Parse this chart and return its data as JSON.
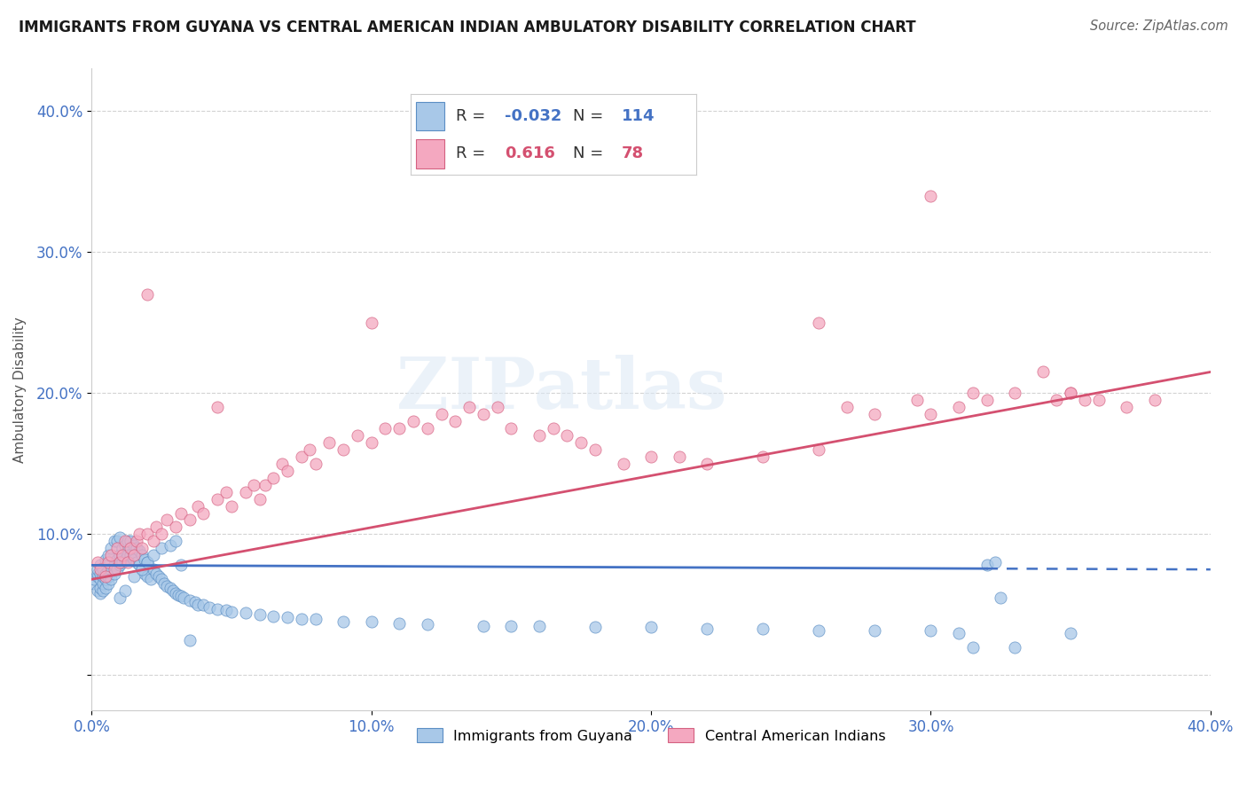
{
  "title": "IMMIGRANTS FROM GUYANA VS CENTRAL AMERICAN INDIAN AMBULATORY DISABILITY CORRELATION CHART",
  "source": "Source: ZipAtlas.com",
  "ylabel": "Ambulatory Disability",
  "xlim": [
    0.0,
    0.4
  ],
  "ylim": [
    -0.025,
    0.43
  ],
  "yticks": [
    0.0,
    0.1,
    0.2,
    0.3,
    0.4
  ],
  "xticks": [
    0.0,
    0.1,
    0.2,
    0.3,
    0.4
  ],
  "ytick_labels": [
    "",
    "10.0%",
    "20.0%",
    "30.0%",
    "40.0%"
  ],
  "xtick_labels": [
    "0.0%",
    "10.0%",
    "20.0%",
    "30.0%",
    "40.0%"
  ],
  "blue_R": "-0.032",
  "blue_N": "114",
  "pink_R": "0.616",
  "pink_N": "78",
  "blue_color": "#a8c8e8",
  "pink_color": "#f4a8c0",
  "blue_edge_color": "#5b8ec4",
  "pink_edge_color": "#d46080",
  "blue_line_color": "#4472c4",
  "pink_line_color": "#d45070",
  "watermark": "ZIPatlas",
  "legend_label_blue": "Immigrants from Guyana",
  "legend_label_pink": "Central American Indians",
  "title_fontsize": 12,
  "axis_tick_color": "#4472c4",
  "blue_line_start_y": 0.078,
  "blue_line_end_y": 0.075,
  "blue_line_solid_end_x": 0.32,
  "pink_line_start_y": 0.068,
  "pink_line_end_y": 0.215,
  "blue_scatter_x": [
    0.001,
    0.001,
    0.002,
    0.002,
    0.002,
    0.002,
    0.003,
    0.003,
    0.003,
    0.003,
    0.003,
    0.004,
    0.004,
    0.004,
    0.004,
    0.005,
    0.005,
    0.005,
    0.005,
    0.006,
    0.006,
    0.006,
    0.006,
    0.007,
    0.007,
    0.007,
    0.008,
    0.008,
    0.008,
    0.009,
    0.009,
    0.009,
    0.01,
    0.01,
    0.01,
    0.011,
    0.011,
    0.012,
    0.012,
    0.013,
    0.013,
    0.014,
    0.014,
    0.015,
    0.015,
    0.016,
    0.016,
    0.017,
    0.017,
    0.018,
    0.018,
    0.019,
    0.019,
    0.02,
    0.02,
    0.021,
    0.022,
    0.023,
    0.024,
    0.025,
    0.026,
    0.027,
    0.028,
    0.029,
    0.03,
    0.031,
    0.032,
    0.033,
    0.035,
    0.037,
    0.038,
    0.04,
    0.042,
    0.045,
    0.048,
    0.05,
    0.055,
    0.06,
    0.065,
    0.07,
    0.075,
    0.08,
    0.09,
    0.1,
    0.11,
    0.12,
    0.14,
    0.15,
    0.16,
    0.18,
    0.2,
    0.22,
    0.24,
    0.26,
    0.28,
    0.3,
    0.31,
    0.315,
    0.32,
    0.323,
    0.325,
    0.33,
    0.35,
    0.01,
    0.012,
    0.015,
    0.018,
    0.02,
    0.022,
    0.025,
    0.028,
    0.03,
    0.032,
    0.035
  ],
  "blue_scatter_y": [
    0.065,
    0.068,
    0.06,
    0.07,
    0.072,
    0.075,
    0.058,
    0.062,
    0.068,
    0.072,
    0.078,
    0.06,
    0.065,
    0.07,
    0.075,
    0.062,
    0.068,
    0.072,
    0.082,
    0.065,
    0.07,
    0.075,
    0.085,
    0.068,
    0.075,
    0.09,
    0.072,
    0.078,
    0.095,
    0.075,
    0.082,
    0.095,
    0.078,
    0.085,
    0.098,
    0.08,
    0.09,
    0.082,
    0.092,
    0.085,
    0.095,
    0.085,
    0.095,
    0.082,
    0.092,
    0.08,
    0.09,
    0.078,
    0.088,
    0.075,
    0.085,
    0.072,
    0.082,
    0.07,
    0.08,
    0.068,
    0.075,
    0.072,
    0.07,
    0.068,
    0.065,
    0.063,
    0.062,
    0.06,
    0.058,
    0.057,
    0.056,
    0.055,
    0.053,
    0.052,
    0.05,
    0.05,
    0.048,
    0.047,
    0.046,
    0.045,
    0.044,
    0.043,
    0.042,
    0.041,
    0.04,
    0.04,
    0.038,
    0.038,
    0.037,
    0.036,
    0.035,
    0.035,
    0.035,
    0.034,
    0.034,
    0.033,
    0.033,
    0.032,
    0.032,
    0.032,
    0.03,
    0.02,
    0.078,
    0.08,
    0.055,
    0.02,
    0.03,
    0.055,
    0.06,
    0.07,
    0.075,
    0.08,
    0.085,
    0.09,
    0.092,
    0.095,
    0.078,
    0.025
  ],
  "pink_scatter_x": [
    0.002,
    0.003,
    0.005,
    0.006,
    0.007,
    0.008,
    0.009,
    0.01,
    0.011,
    0.012,
    0.013,
    0.014,
    0.015,
    0.016,
    0.017,
    0.018,
    0.02,
    0.022,
    0.023,
    0.025,
    0.027,
    0.03,
    0.032,
    0.035,
    0.038,
    0.04,
    0.045,
    0.048,
    0.05,
    0.055,
    0.058,
    0.06,
    0.062,
    0.065,
    0.068,
    0.07,
    0.075,
    0.078,
    0.08,
    0.085,
    0.09,
    0.095,
    0.1,
    0.105,
    0.11,
    0.115,
    0.12,
    0.125,
    0.13,
    0.135,
    0.14,
    0.145,
    0.15,
    0.16,
    0.165,
    0.17,
    0.175,
    0.18,
    0.19,
    0.2,
    0.21,
    0.22,
    0.24,
    0.26,
    0.27,
    0.28,
    0.295,
    0.3,
    0.31,
    0.315,
    0.32,
    0.33,
    0.34,
    0.345,
    0.35,
    0.355,
    0.36,
    0.37
  ],
  "pink_scatter_y": [
    0.08,
    0.075,
    0.07,
    0.08,
    0.085,
    0.075,
    0.09,
    0.08,
    0.085,
    0.095,
    0.08,
    0.09,
    0.085,
    0.095,
    0.1,
    0.09,
    0.1,
    0.095,
    0.105,
    0.1,
    0.11,
    0.105,
    0.115,
    0.11,
    0.12,
    0.115,
    0.125,
    0.13,
    0.12,
    0.13,
    0.135,
    0.125,
    0.135,
    0.14,
    0.15,
    0.145,
    0.155,
    0.16,
    0.15,
    0.165,
    0.16,
    0.17,
    0.165,
    0.175,
    0.175,
    0.18,
    0.175,
    0.185,
    0.18,
    0.19,
    0.185,
    0.19,
    0.175,
    0.17,
    0.175,
    0.17,
    0.165,
    0.16,
    0.15,
    0.155,
    0.155,
    0.15,
    0.155,
    0.16,
    0.19,
    0.185,
    0.195,
    0.185,
    0.19,
    0.2,
    0.195,
    0.2,
    0.215,
    0.195,
    0.2,
    0.195,
    0.195,
    0.19
  ],
  "pink_outliers_x": [
    0.02,
    0.045,
    0.1,
    0.26,
    0.3,
    0.35,
    0.38
  ],
  "pink_outliers_y": [
    0.27,
    0.19,
    0.25,
    0.25,
    0.34,
    0.2,
    0.195
  ]
}
